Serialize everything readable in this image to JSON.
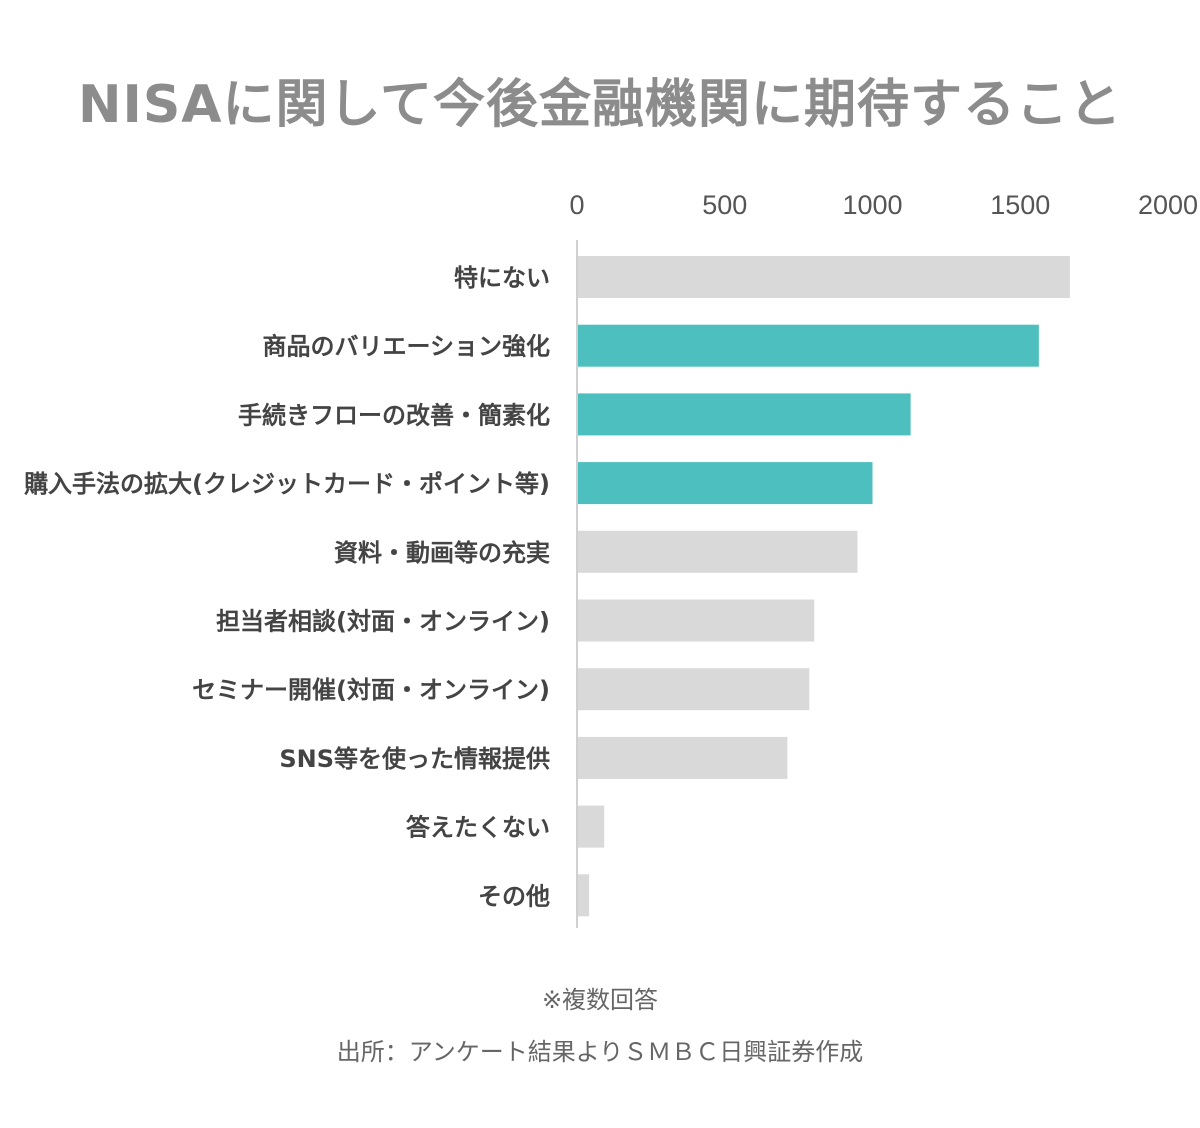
{
  "chart_data": {
    "type": "bar",
    "orientation": "horizontal",
    "title": "NISAに関して今後金融機関に期待すること",
    "categories": [
      "特にない",
      "商品のバリエーション強化",
      "手続きフローの改善・簡素化",
      "購入手法の拡大(クレジットカード・ポイント等)",
      "資料・動画等の充実",
      "担当者相談(対面・オンライン)",
      "セミナー開催(対面・オンライン)",
      "SNS等を使った情報提供",
      "答えたくない",
      "その他"
    ],
    "values": [
      1668,
      1563,
      1129,
      1000,
      949,
      803,
      786,
      712,
      92,
      41
    ],
    "highlighted": [
      false,
      true,
      true,
      true,
      false,
      false,
      false,
      false,
      false,
      false
    ],
    "xlim": [
      0,
      2000
    ],
    "xticks": [
      "0",
      "500",
      "1000",
      "1500",
      "2000"
    ],
    "axis_position": "top",
    "grid": false,
    "colors": {
      "highlight": "#4cbfbe",
      "default": "#d9d9d9"
    }
  },
  "notes": {
    "multiple": "※複数回答",
    "source": "出所：アンケート結果よりＳＭＢＣ日興証券作成"
  }
}
